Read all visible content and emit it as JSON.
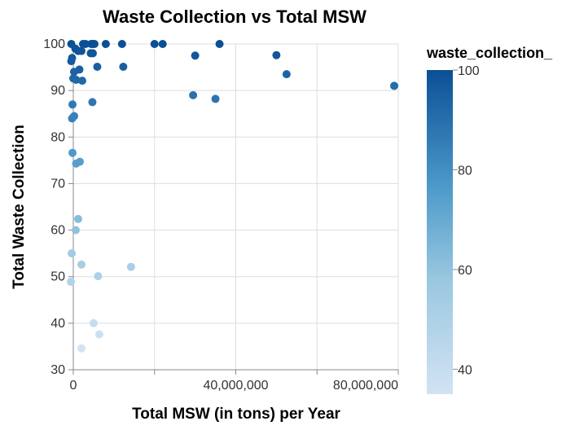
{
  "chart_data": {
    "type": "scatter",
    "title": "Waste Collection vs Total MSW",
    "xlabel": "Total MSW (in tons) per Year",
    "ylabel": "Total Waste Collection",
    "xlim": [
      0,
      80000000
    ],
    "ylim": [
      30,
      100
    ],
    "xticks": [
      0,
      20000000,
      40000000,
      60000000,
      80000000
    ],
    "xtick_labels": [
      "0",
      "",
      "40,000,000",
      "",
      "80,000,000"
    ],
    "yticks": [
      30,
      40,
      50,
      60,
      70,
      80,
      90,
      100
    ],
    "ytick_labels": [
      "30",
      "40",
      "50",
      "60",
      "70",
      "80",
      "90",
      "100"
    ],
    "grid": true,
    "legend": {
      "title": "waste_collection_",
      "placement": "right",
      "type": "gradient",
      "range": [
        35,
        100
      ],
      "ticks": [
        100,
        80,
        60,
        40
      ],
      "tick_labels": [
        "100",
        "80",
        "60",
        "40"
      ],
      "color_low": "#d2e3f3",
      "color_high": "#0b4f96"
    },
    "points": [
      {
        "x": -500000,
        "y": 100
      },
      {
        "x": 2400000,
        "y": 100
      },
      {
        "x": 3000000,
        "y": 100
      },
      {
        "x": 4400000,
        "y": 100
      },
      {
        "x": 4800000,
        "y": 100
      },
      {
        "x": 5200000,
        "y": 100
      },
      {
        "x": 8000000,
        "y": 100
      },
      {
        "x": 12000000,
        "y": 100
      },
      {
        "x": 20000000,
        "y": 100
      },
      {
        "x": 22000000,
        "y": 100
      },
      {
        "x": 36000000,
        "y": 100
      },
      {
        "x": 500000,
        "y": 99
      },
      {
        "x": 1200000,
        "y": 98.5
      },
      {
        "x": 2000000,
        "y": 98.5
      },
      {
        "x": 4300000,
        "y": 98
      },
      {
        "x": 4800000,
        "y": 98
      },
      {
        "x": -300000,
        "y": 97
      },
      {
        "x": -500000,
        "y": 96.3
      },
      {
        "x": 30000000,
        "y": 97.5
      },
      {
        "x": 50000000,
        "y": 97.6
      },
      {
        "x": 5900000,
        "y": 95.1
      },
      {
        "x": 12300000,
        "y": 95.1
      },
      {
        "x": 1500000,
        "y": 94.5
      },
      {
        "x": 200000,
        "y": 94
      },
      {
        "x": 52500000,
        "y": 93.5
      },
      {
        "x": 0,
        "y": 92.6
      },
      {
        "x": 700000,
        "y": 92.3
      },
      {
        "x": 2200000,
        "y": 92.1
      },
      {
        "x": 79000000,
        "y": 91
      },
      {
        "x": 29500000,
        "y": 89
      },
      {
        "x": 35000000,
        "y": 88.2
      },
      {
        "x": 4700000,
        "y": 87.5
      },
      {
        "x": -200000,
        "y": 87
      },
      {
        "x": 200000,
        "y": 84.5
      },
      {
        "x": -300000,
        "y": 84
      },
      {
        "x": -200000,
        "y": 76.6
      },
      {
        "x": 1600000,
        "y": 74.7
      },
      {
        "x": 700000,
        "y": 74.3
      },
      {
        "x": 1200000,
        "y": 62.4
      },
      {
        "x": 600000,
        "y": 60
      },
      {
        "x": -400000,
        "y": 55
      },
      {
        "x": 2000000,
        "y": 52.6
      },
      {
        "x": 14200000,
        "y": 52.1
      },
      {
        "x": 6100000,
        "y": 50.1
      },
      {
        "x": -600000,
        "y": 48.9
      },
      {
        "x": 5000000,
        "y": 40
      },
      {
        "x": 6400000,
        "y": 37.6
      },
      {
        "x": 2000000,
        "y": 34.6
      }
    ]
  }
}
